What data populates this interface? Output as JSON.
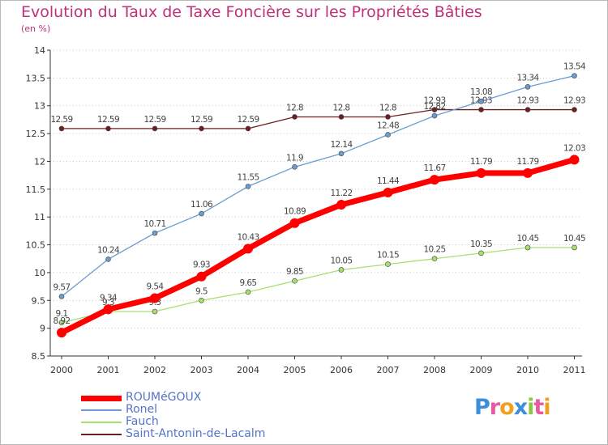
{
  "title": "Evolution du Taux de Taxe Foncière sur les Propriétés Bâties",
  "subtitle": "(en %)",
  "logo": "Proxiti",
  "chart_data": {
    "type": "line",
    "x": [
      "2000",
      "2001",
      "2002",
      "2003",
      "2004",
      "2005",
      "2006",
      "2007",
      "2008",
      "2009",
      "2010",
      "2011"
    ],
    "y_ticks": [
      "8.5",
      "9",
      "9.5",
      "10",
      "10.5",
      "11",
      "11.5",
      "12",
      "12.5",
      "13",
      "13.5",
      "14"
    ],
    "ylim": [
      8.5,
      14
    ],
    "grid": "horizontal dotted",
    "legend_position": "bottom",
    "series": [
      {
        "name": "Saint-Antonin-de-Lacalm",
        "color": "#6e1e1e",
        "values": [
          12.59,
          12.59,
          12.59,
          12.59,
          12.59,
          12.8,
          12.8,
          12.8,
          12.93,
          12.93,
          12.93,
          12.93
        ],
        "labels": [
          "12.59",
          "12.59",
          "12.59",
          "12.59",
          "12.59",
          "12.8",
          "12.8",
          "12.8",
          "12.93",
          "12.93",
          "12.93",
          "12.93"
        ]
      },
      {
        "name": "Ronel",
        "color": "#6b9bd0",
        "values": [
          9.57,
          10.24,
          10.71,
          11.06,
          11.55,
          11.9,
          12.14,
          12.48,
          12.82,
          13.08,
          13.34,
          13.54
        ],
        "labels": [
          "9.57",
          "10.24",
          "10.71",
          "11.06",
          "11.55",
          "11.9",
          "12.14",
          "12.48",
          "12.82",
          "13.08",
          "13.34",
          "13.54"
        ]
      },
      {
        "name": "Fauch",
        "color": "#a8e070",
        "values": [
          9.1,
          9.3,
          9.3,
          9.5,
          9.65,
          9.85,
          10.05,
          10.15,
          10.25,
          10.35,
          10.45,
          10.45
        ],
        "labels": [
          "9.1",
          "9.3",
          "9.3",
          "9.5",
          "9.65",
          "9.85",
          "10.05",
          "10.15",
          "10.25",
          "10.35",
          "10.45",
          "10.45"
        ]
      },
      {
        "name": "ROUMéGOUX",
        "color": "#ff0000",
        "values": [
          8.92,
          9.34,
          9.54,
          9.93,
          10.43,
          10.89,
          11.22,
          11.44,
          11.67,
          11.79,
          11.79,
          12.03
        ],
        "labels": [
          "8.92",
          "9.34",
          "9.54",
          "9.93",
          "10.43",
          "10.89",
          "11.22",
          "11.44",
          "11.67",
          "11.79",
          "11.79",
          "12.03"
        ]
      }
    ]
  }
}
